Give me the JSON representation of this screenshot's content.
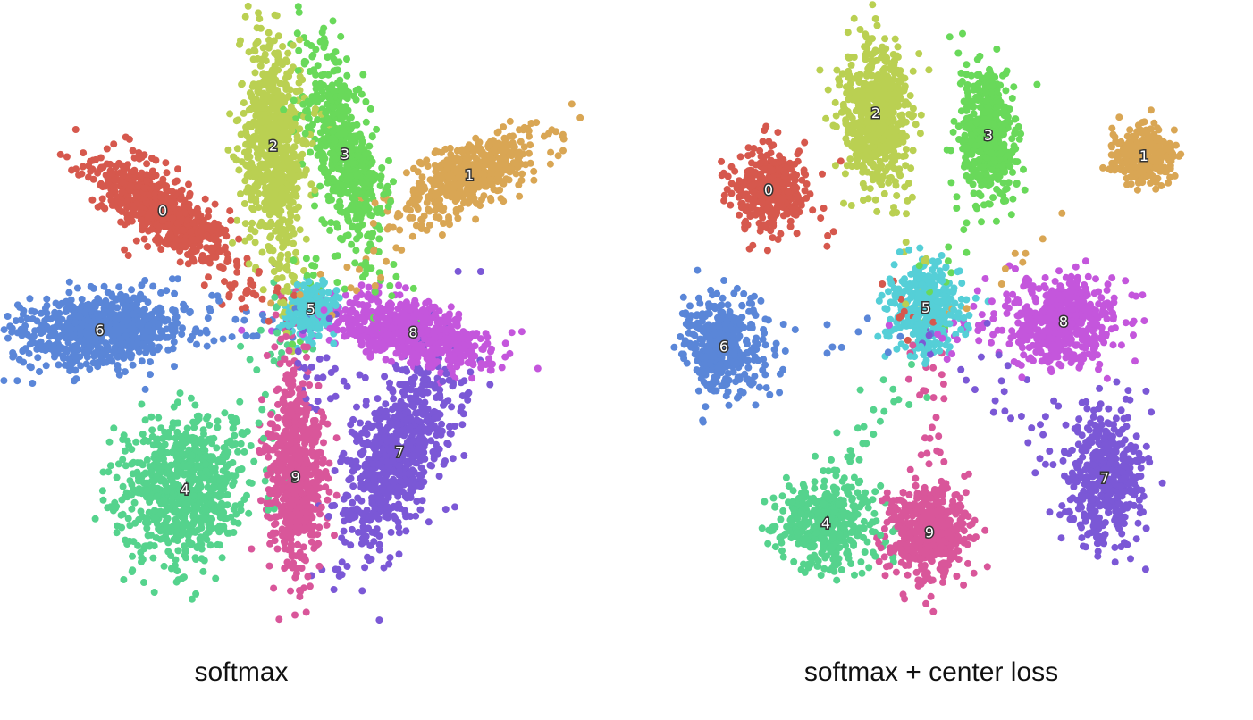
{
  "chart_data": [
    {
      "type": "scatter",
      "title": "softmax",
      "xlabel": "",
      "ylabel": "",
      "grid": false,
      "legend": "none",
      "classes": [
        {
          "name": "0",
          "color": "#d6584d",
          "center": [
            -0.75,
            0.55
          ],
          "spread": [
            0.22,
            0.07
          ],
          "angle": -28,
          "count": 700
        },
        {
          "name": "1",
          "color": "#d9a654",
          "center": [
            1.05,
            0.72
          ],
          "spread": [
            0.22,
            0.08
          ],
          "angle": 20,
          "count": 520
        },
        {
          "name": "2",
          "color": "#bad052",
          "center": [
            -0.1,
            0.86
          ],
          "spread": [
            0.09,
            0.26
          ],
          "angle": 4,
          "count": 780
        },
        {
          "name": "3",
          "color": "#69d95a",
          "center": [
            0.32,
            0.82
          ],
          "spread": [
            0.09,
            0.26
          ],
          "angle": 20,
          "count": 600
        },
        {
          "name": "4",
          "color": "#55d38d",
          "center": [
            -0.62,
            -0.78
          ],
          "spread": [
            0.18,
            0.17
          ],
          "angle": 0,
          "count": 780
        },
        {
          "name": "5",
          "color": "#55cfd7",
          "center": [
            0.12,
            0.08
          ],
          "spread": [
            0.07,
            0.06
          ],
          "angle": 0,
          "count": 240
        },
        {
          "name": "6",
          "color": "#5a86d8",
          "center": [
            -1.12,
            -0.02
          ],
          "spread": [
            0.24,
            0.09
          ],
          "angle": 6,
          "count": 780
        },
        {
          "name": "7",
          "color": "#7b58d6",
          "center": [
            0.64,
            -0.6
          ],
          "spread": [
            0.12,
            0.26
          ],
          "angle": -32,
          "count": 780
        },
        {
          "name": "8",
          "color": "#c456dc",
          "center": [
            0.72,
            -0.03
          ],
          "spread": [
            0.22,
            0.07
          ],
          "angle": -12,
          "count": 700
        },
        {
          "name": "9",
          "color": "#d9569a",
          "center": [
            0.03,
            -0.72
          ],
          "spread": [
            0.08,
            0.22
          ],
          "angle": 0,
          "count": 720
        }
      ],
      "xlim": [
        -1.6,
        1.6
      ],
      "ylim": [
        -1.3,
        1.3
      ]
    },
    {
      "type": "scatter",
      "title": "softmax + center loss",
      "xlabel": "",
      "ylabel": "",
      "grid": false,
      "legend": "none",
      "classes": [
        {
          "name": "0",
          "color": "#d6584d",
          "center": [
            -0.9,
            0.62
          ],
          "spread": [
            0.1,
            0.09
          ],
          "angle": 0,
          "count": 420
        },
        {
          "name": "1",
          "color": "#d9a654",
          "center": [
            1.2,
            0.77
          ],
          "spread": [
            0.09,
            0.06
          ],
          "angle": 0,
          "count": 300
        },
        {
          "name": "2",
          "color": "#bad052",
          "center": [
            -0.3,
            0.96
          ],
          "spread": [
            0.1,
            0.15
          ],
          "angle": 0,
          "count": 620
        },
        {
          "name": "3",
          "color": "#69d95a",
          "center": [
            0.33,
            0.86
          ],
          "spread": [
            0.08,
            0.15
          ],
          "angle": 8,
          "count": 480
        },
        {
          "name": "4",
          "color": "#55d38d",
          "center": [
            -0.58,
            -0.85
          ],
          "spread": [
            0.13,
            0.1
          ],
          "angle": 0,
          "count": 460
        },
        {
          "name": "5",
          "color": "#55cfd7",
          "center": [
            -0.02,
            0.1
          ],
          "spread": [
            0.1,
            0.1
          ],
          "angle": 0,
          "count": 380
        },
        {
          "name": "6",
          "color": "#5a86d8",
          "center": [
            -1.15,
            -0.07
          ],
          "spread": [
            0.11,
            0.11
          ],
          "angle": 0,
          "count": 420
        },
        {
          "name": "7",
          "color": "#7b58d6",
          "center": [
            0.98,
            -0.65
          ],
          "spread": [
            0.11,
            0.15
          ],
          "angle": 0,
          "count": 500
        },
        {
          "name": "8",
          "color": "#c456dc",
          "center": [
            0.75,
            0.04
          ],
          "spread": [
            0.16,
            0.1
          ],
          "angle": 0,
          "count": 560
        },
        {
          "name": "9",
          "color": "#d9569a",
          "center": [
            0.0,
            -0.89
          ],
          "spread": [
            0.11,
            0.11
          ],
          "angle": 0,
          "count": 520
        }
      ],
      "xlim": [
        -1.6,
        1.6
      ],
      "ylim": [
        -1.3,
        1.3
      ]
    }
  ]
}
